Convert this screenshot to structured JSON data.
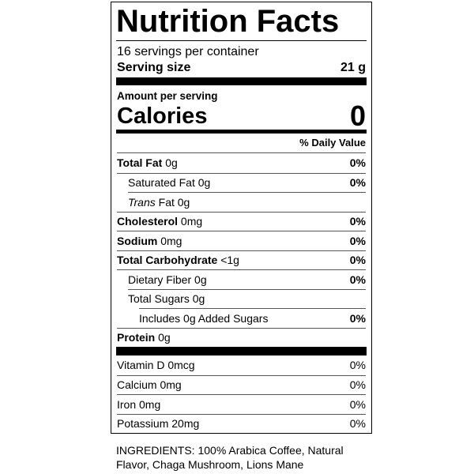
{
  "title": "Nutrition Facts",
  "servings": "16 servings per container",
  "serving_size": {
    "label": "Serving size",
    "value": "21 g"
  },
  "amount_per_serving": "Amount per serving",
  "calories": {
    "label": "Calories",
    "value": "0"
  },
  "daily_value_header": "% Daily Value",
  "nutrients": [
    {
      "name": "Total Fat",
      "amount": "0g",
      "dv": "0%"
    },
    {
      "name": "Saturated Fat",
      "amount": "0g",
      "dv": "0%"
    },
    {
      "name_prefix": "Trans",
      "name": "Fat",
      "amount": "0g"
    },
    {
      "name": "Cholesterol",
      "amount": "0mg",
      "dv": "0%"
    },
    {
      "name": "Sodium",
      "amount": "0mg",
      "dv": "0%"
    },
    {
      "name": "Total Carbohydrate",
      "amount": "<1g",
      "dv": "0%"
    },
    {
      "name": "Dietary Fiber",
      "amount": "0g",
      "dv": "0%"
    },
    {
      "name": "Total Sugars",
      "amount": "0g"
    },
    {
      "name": "Includes 0g Added Sugars",
      "dv": "0%"
    },
    {
      "name": "Protein",
      "amount": "0g"
    }
  ],
  "vitamins": [
    {
      "name": "Vitamin D",
      "amount": "0mcg",
      "dv": "0%"
    },
    {
      "name": "Calcium",
      "amount": "0mg",
      "dv": "0%"
    },
    {
      "name": "Iron",
      "amount": "0mg",
      "dv": "0%"
    },
    {
      "name": "Potassium",
      "amount": "20mg",
      "dv": "0%"
    }
  ],
  "ingredients": "INGREDIENTS: 100% Arabica Coffee, Natural Flavor, Chaga Mushroom, Lions Mane"
}
